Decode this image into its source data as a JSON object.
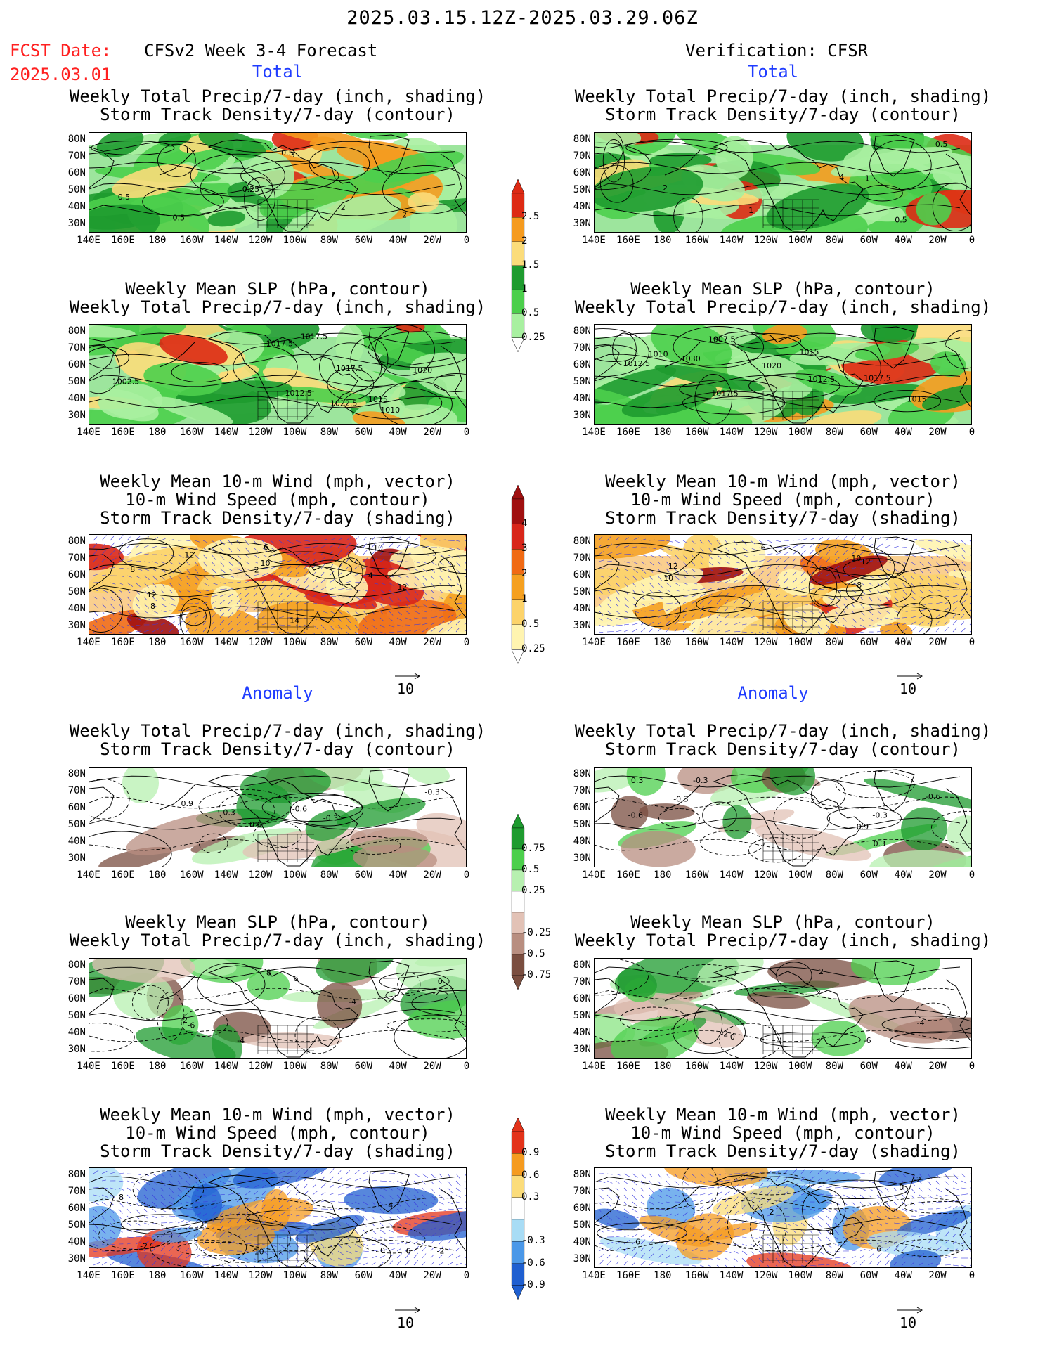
{
  "header": {
    "main_title": "2025.03.15.12Z-2025.03.29.06Z",
    "fcst_label": "FCST Date:",
    "fcst_date": "2025.03.01",
    "left_model": "CFSv2 Week 3-4 Forecast",
    "right_model": "Verification: CFSR"
  },
  "sections": {
    "total": "Total",
    "anomaly": "Anomaly"
  },
  "panel_titles": {
    "precip_storm": [
      "Weekly Total Precip/7-day (inch, shading)",
      "Storm Track Density/7-day (contour)"
    ],
    "slp_precip": [
      "Weekly Mean SLP (hPa, contour)",
      "Weekly Total Precip/7-day (inch, shading)"
    ],
    "wind_storm": [
      "Weekly Mean 10-m Wind (mph, vector)",
      "10-m Wind Speed (mph, contour)",
      "Storm Track Density/7-day (shading)"
    ]
  },
  "axes": {
    "lat_ticks": [
      "80N",
      "70N",
      "60N",
      "50N",
      "40N",
      "30N"
    ],
    "lon_ticks": [
      "140E",
      "160E",
      "180",
      "160W",
      "140W",
      "120W",
      "100W",
      "80W",
      "60W",
      "40W",
      "20W",
      "0"
    ]
  },
  "colorbars": {
    "precip_total": [
      "2.5",
      "2",
      "1.5",
      "1",
      "0.5",
      "0.25"
    ],
    "storm_total": [
      "4",
      "3",
      "2",
      "1",
      "0.5",
      "0.25"
    ],
    "precip_anom": [
      "0.75",
      "0.5",
      "0.25",
      "-0.25",
      "-0.5",
      "-0.75"
    ],
    "storm_anom": [
      "0.9",
      "0.6",
      "0.3",
      "-0.3",
      "-0.6",
      "-0.9"
    ]
  },
  "colors": {
    "precip_total": [
      "#dd2a14",
      "#f59b1f",
      "#fbdc7a",
      "#1e9b2f",
      "#4ccf4c",
      "#a8f0a0"
    ],
    "storm_total": [
      "#a01010",
      "#d8261a",
      "#f06a14",
      "#f5a020",
      "#fcd36a",
      "#fff4b0"
    ],
    "precip_anom": [
      "#1e9b2f",
      "#4ccf4c",
      "#b7f0b0",
      "#e2c2b6",
      "#b88e80",
      "#7a4e40"
    ],
    "storm_anom": [
      "#e3331a",
      "#f59b1f",
      "#fbdc7a",
      "#a8dcf5",
      "#4b98e8",
      "#1f5fd0"
    ]
  },
  "wind_reference": "10",
  "contour_labels": {
    "l1": [
      "0.25",
      "0.5",
      "0.5",
      "2",
      "1",
      "2",
      "3",
      "1",
      "0.5"
    ],
    "r1": [
      "4",
      "1",
      "2",
      "1",
      "0.5",
      "0.5"
    ],
    "l2": [
      "1020",
      "1012.5",
      "1010",
      "1017.5",
      "1022.5",
      "1017.5",
      "1002.5",
      "1017.5",
      "1015"
    ],
    "r2": [
      "1030",
      "1010",
      "1020",
      "1007.5",
      "1017.5",
      "1015",
      "1012.5",
      "1012.5",
      "1015",
      "1017.5"
    ],
    "l3": [
      "2",
      "12",
      "8",
      "10",
      "12",
      "8",
      "6",
      "4",
      "14",
      "10",
      "12"
    ],
    "r3": [
      "10",
      "6",
      "12",
      "12",
      "8",
      "10"
    ],
    "l4": [
      "-0.3",
      "0.9",
      "0.6",
      "-0.3",
      "-0.6",
      "-0.3"
    ],
    "r4": [
      "-0.3",
      "0.3",
      "0.3",
      "-0.6",
      "-0.3",
      "0.9",
      "-0.6",
      "-0.3"
    ],
    "l5": [
      "8",
      "6",
      "-4",
      "-2",
      "0",
      "-6",
      "-4",
      "-2"
    ],
    "r5": [
      "-6",
      "2",
      "0",
      "-4",
      "2",
      "-2"
    ],
    "l6": [
      "-2",
      "6",
      "8",
      "-2",
      "10",
      "0",
      "4"
    ],
    "r6": [
      "4",
      "2",
      "4",
      "6",
      "6",
      "-2",
      "0"
    ]
  }
}
